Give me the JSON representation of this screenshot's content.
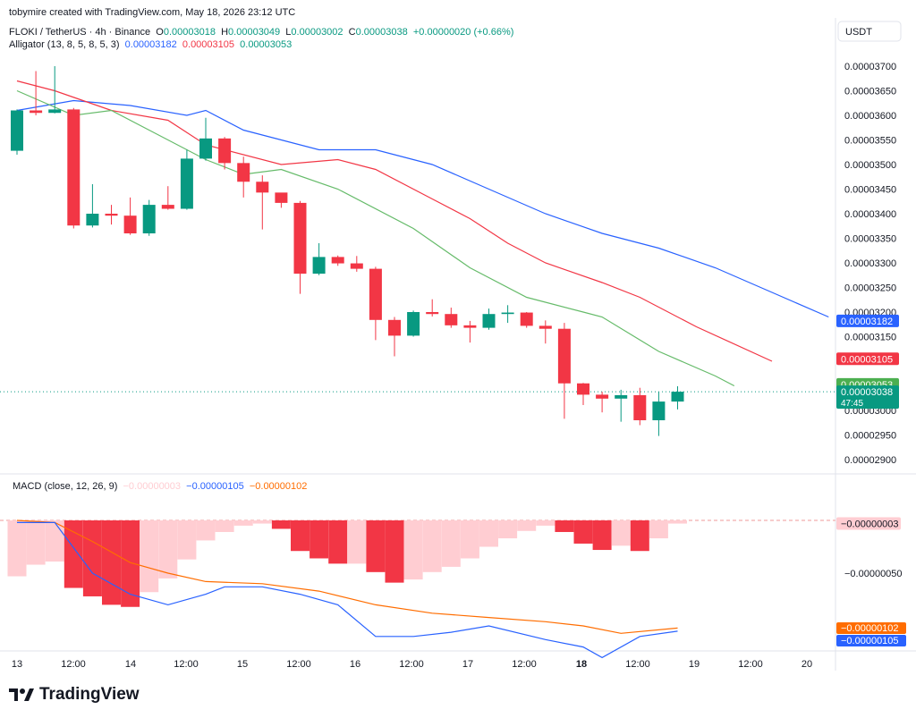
{
  "attribution": "tobymire created with TradingView.com, May 18, 2026 23:12 UTC",
  "symbol": {
    "title": "FLOKI / TetherUS · 4h · Binance",
    "o_label": "O",
    "o": "0.00003018",
    "h_label": "H",
    "h": "0.00003049",
    "l_label": "L",
    "l": "0.00003002",
    "c_label": "C",
    "c": "0.00003038",
    "change": "+0.00000020 (+0.66%)"
  },
  "alligator": {
    "label": "Alligator (13, 8, 5, 8, 5, 3)",
    "jaw": "0.00003182",
    "teeth": "0.00003105",
    "lips": "0.00003053"
  },
  "currency_button": "USDT",
  "macd": {
    "label": "MACD (close, 12, 26, 9)",
    "hist": "−0.00000003",
    "macd": "−0.00000105",
    "signal": "−0.00000102"
  },
  "logo_text": "TradingView",
  "colors": {
    "up": "#089981",
    "down": "#f23645",
    "jaw": "#2962ff",
    "teeth": "#f23645",
    "lips": "#66bb6a",
    "macd": "#2962ff",
    "signal": "#ff6d00",
    "hist_dark": "#f23645",
    "hist_light": "#ffcdd2"
  },
  "chart_data": {
    "type": "candlestick",
    "interval": "4h",
    "x_tick_labels": [
      "13",
      "12:00",
      "14",
      "12:00",
      "15",
      "12:00",
      "16",
      "12:00",
      "17",
      "12:00",
      "18",
      "12:00",
      "19",
      "12:00",
      "20"
    ],
    "price_axis_labels": [
      "0.00003700",
      "0.00003650",
      "0.00003600",
      "0.00003550",
      "0.00003500",
      "0.00003450",
      "0.00003400",
      "0.00003350",
      "0.00003300",
      "0.00003250",
      "0.00003200",
      "0.00003150",
      "0.00003000",
      "0.00002950",
      "0.00002900"
    ],
    "price_ylim": [
      2.88e-05,
      3.72e-05
    ],
    "candles": [
      {
        "o": 3.528e-05,
        "h": 3.612e-05,
        "l": 3.52e-05,
        "c": 3.61e-05
      },
      {
        "o": 3.61e-05,
        "h": 3.69e-05,
        "l": 3.6e-05,
        "c": 3.605e-05
      },
      {
        "o": 3.605e-05,
        "h": 3.7e-05,
        "l": 3.604e-05,
        "c": 3.612e-05
      },
      {
        "o": 3.612e-05,
        "h": 3.615e-05,
        "l": 3.37e-05,
        "c": 3.376e-05
      },
      {
        "o": 3.376e-05,
        "h": 3.46e-05,
        "l": 3.372e-05,
        "c": 3.4e-05
      },
      {
        "o": 3.4e-05,
        "h": 3.418e-05,
        "l": 3.378e-05,
        "c": 3.396e-05
      },
      {
        "o": 3.396e-05,
        "h": 3.433e-05,
        "l": 3.357e-05,
        "c": 3.36e-05
      },
      {
        "o": 3.36e-05,
        "h": 3.428e-05,
        "l": 3.355e-05,
        "c": 3.418e-05
      },
      {
        "o": 3.418e-05,
        "h": 3.456e-05,
        "l": 3.408e-05,
        "c": 3.41e-05
      },
      {
        "o": 3.41e-05,
        "h": 3.53e-05,
        "l": 3.408e-05,
        "c": 3.512e-05
      },
      {
        "o": 3.512e-05,
        "h": 3.595e-05,
        "l": 3.508e-05,
        "c": 3.553e-05
      },
      {
        "o": 3.553e-05,
        "h": 3.556e-05,
        "l": 3.49e-05,
        "c": 3.503e-05
      },
      {
        "o": 3.503e-05,
        "h": 3.516e-05,
        "l": 3.433e-05,
        "c": 3.465e-05
      },
      {
        "o": 3.465e-05,
        "h": 3.478e-05,
        "l": 3.368e-05,
        "c": 3.443e-05
      },
      {
        "o": 3.443e-05,
        "h": 3.44e-05,
        "l": 3.412e-05,
        "c": 3.422e-05
      },
      {
        "o": 3.422e-05,
        "h": 3.426e-05,
        "l": 3.237e-05,
        "c": 3.278e-05
      },
      {
        "o": 3.278e-05,
        "h": 3.34e-05,
        "l": 3.275e-05,
        "c": 3.312e-05
      },
      {
        "o": 3.312e-05,
        "h": 3.315e-05,
        "l": 3.294e-05,
        "c": 3.299e-05
      },
      {
        "o": 3.299e-05,
        "h": 3.314e-05,
        "l": 3.282e-05,
        "c": 3.288e-05
      },
      {
        "o": 3.288e-05,
        "h": 3.292e-05,
        "l": 3.143e-05,
        "c": 3.184e-05
      },
      {
        "o": 3.184e-05,
        "h": 3.19e-05,
        "l": 3.11e-05,
        "c": 3.152e-05
      },
      {
        "o": 3.152e-05,
        "h": 3.203e-05,
        "l": 3.15e-05,
        "c": 3.2e-05
      },
      {
        "o": 3.2e-05,
        "h": 3.226e-05,
        "l": 3.191e-05,
        "c": 3.196e-05
      },
      {
        "o": 3.196e-05,
        "h": 3.209e-05,
        "l": 3.168e-05,
        "c": 3.173e-05
      },
      {
        "o": 3.173e-05,
        "h": 3.182e-05,
        "l": 3.138e-05,
        "c": 3.168e-05
      },
      {
        "o": 3.168e-05,
        "h": 3.207e-05,
        "l": 3.164e-05,
        "c": 3.196e-05
      },
      {
        "o": 3.196e-05,
        "h": 3.214e-05,
        "l": 3.178e-05,
        "c": 3.199e-05
      },
      {
        "o": 3.199e-05,
        "h": 3.2e-05,
        "l": 3.168e-05,
        "c": 3.172e-05
      },
      {
        "o": 3.172e-05,
        "h": 3.183e-05,
        "l": 3.136e-05,
        "c": 3.166e-05
      },
      {
        "o": 3.166e-05,
        "h": 3.178e-05,
        "l": 2.983e-05,
        "c": 3.055e-05
      },
      {
        "o": 3.055e-05,
        "h": 3.056e-05,
        "l": 3.011e-05,
        "c": 3.032e-05
      },
      {
        "o": 3.032e-05,
        "h": 3.038e-05,
        "l": 2.996e-05,
        "c": 3.024e-05
      },
      {
        "o": 3.024e-05,
        "h": 3.042e-05,
        "l": 2.977e-05,
        "c": 3.031e-05
      },
      {
        "o": 3.031e-05,
        "h": 3.046e-05,
        "l": 2.97e-05,
        "c": 2.98e-05
      },
      {
        "o": 2.98e-05,
        "h": 3.038e-05,
        "l": 2.948e-05,
        "c": 3.018e-05
      },
      {
        "o": 3.018e-05,
        "h": 3.049e-05,
        "l": 3.002e-05,
        "c": 3.038e-05
      }
    ],
    "alligator_jaw": [
      [
        0,
        3.61e-05
      ],
      [
        3,
        3.63e-05
      ],
      [
        6,
        3.62e-05
      ],
      [
        9,
        3.6e-05
      ],
      [
        10,
        3.61e-05
      ],
      [
        12,
        3.57e-05
      ],
      [
        16,
        3.53e-05
      ],
      [
        19,
        3.53e-05
      ],
      [
        22,
        3.5e-05
      ],
      [
        25,
        3.45e-05
      ],
      [
        28,
        3.4e-05
      ],
      [
        31,
        3.36e-05
      ],
      [
        34,
        3.33e-05
      ],
      [
        37,
        3.29e-05
      ],
      [
        40,
        3.24e-05
      ],
      [
        43,
        3.19e-05
      ]
    ],
    "alligator_teeth": [
      [
        0,
        3.67e-05
      ],
      [
        2,
        3.65e-05
      ],
      [
        5,
        3.61e-05
      ],
      [
        8,
        3.59e-05
      ],
      [
        10,
        3.54e-05
      ],
      [
        14,
        3.5e-05
      ],
      [
        17,
        3.51e-05
      ],
      [
        19,
        3.49e-05
      ],
      [
        22,
        3.43e-05
      ],
      [
        24,
        3.39e-05
      ],
      [
        26,
        3.34e-05
      ],
      [
        28,
        3.3e-05
      ],
      [
        31,
        3.26e-05
      ],
      [
        33,
        3.23e-05
      ],
      [
        36,
        3.17e-05
      ],
      [
        40,
        3.1e-05
      ]
    ],
    "alligator_lips": [
      [
        0,
        3.65e-05
      ],
      [
        3,
        3.6e-05
      ],
      [
        5,
        3.61e-05
      ],
      [
        7,
        3.57e-05
      ],
      [
        10,
        3.51e-05
      ],
      [
        12,
        3.48e-05
      ],
      [
        14,
        3.49e-05
      ],
      [
        17,
        3.45e-05
      ],
      [
        21,
        3.37e-05
      ],
      [
        24,
        3.29e-05
      ],
      [
        27,
        3.23e-05
      ],
      [
        30,
        3.2e-05
      ],
      [
        31,
        3.19e-05
      ],
      [
        34,
        3.12e-05
      ],
      [
        37,
        3.07e-05
      ],
      [
        38,
        3.05e-05
      ]
    ],
    "current_price": 3.038e-05,
    "current_price_label": "0.00003038",
    "countdown": "47:45",
    "jaw_label": "0.00003182",
    "teeth_label": "0.00003105",
    "lips_label": "0.00003053",
    "macd_axis_labels": [
      "−0.00000050",
      "−0.00000100"
    ],
    "macd_ylim": [
      -1.15e-06,
      9e-08
    ],
    "macd_hist": [
      -5.3e-07,
      -4.2e-07,
      -3.9e-07,
      -6.4e-07,
      -7.2e-07,
      -8e-07,
      -8.2e-07,
      -6.8e-07,
      -5.5e-07,
      -3.7e-07,
      -1.9e-07,
      -1.1e-07,
      -5e-08,
      -3e-08,
      -8e-08,
      -2.9e-07,
      -3.6e-07,
      -4.1e-07,
      -4.1e-07,
      -4.9e-07,
      -5.9e-07,
      -5.6e-07,
      -4.9e-07,
      -4.4e-07,
      -3.6e-07,
      -2.5e-07,
      -1.7e-07,
      -1e-07,
      -5e-08,
      -1.1e-07,
      -2.2e-07,
      -2.8e-07,
      -2.4e-07,
      -2.9e-07,
      -1.7e-07,
      -3e-08
    ],
    "macd_line": [
      [
        0,
        -2e-08
      ],
      [
        2,
        -2e-08
      ],
      [
        4,
        -5e-07
      ],
      [
        6,
        -7e-07
      ],
      [
        8,
        -8e-07
      ],
      [
        10,
        -7e-07
      ],
      [
        11,
        -6.3e-07
      ],
      [
        13,
        -6.3e-07
      ],
      [
        15,
        -7e-07
      ],
      [
        17,
        -8e-07
      ],
      [
        19,
        -1.1e-06
      ],
      [
        21,
        -1.1e-06
      ],
      [
        23,
        -1.06e-06
      ],
      [
        25,
        -1e-06
      ],
      [
        28,
        -1.13e-06
      ],
      [
        30,
        -1.2e-06
      ],
      [
        31,
        -1.3e-06
      ],
      [
        33,
        -1.1e-06
      ],
      [
        35,
        -1.05e-06
      ]
    ],
    "signal_line": [
      [
        0,
        0.0
      ],
      [
        2,
        -2e-08
      ],
      [
        4,
        -2e-07
      ],
      [
        6,
        -4e-07
      ],
      [
        8,
        -5e-07
      ],
      [
        10,
        -5.8e-07
      ],
      [
        13,
        -6e-07
      ],
      [
        16,
        -6.7e-07
      ],
      [
        19,
        -8e-07
      ],
      [
        22,
        -8.8e-07
      ],
      [
        25,
        -9.2e-07
      ],
      [
        28,
        -9.6e-07
      ],
      [
        30,
        -1e-06
      ],
      [
        32,
        -1.07e-06
      ],
      [
        35,
        -1.02e-06
      ]
    ]
  }
}
